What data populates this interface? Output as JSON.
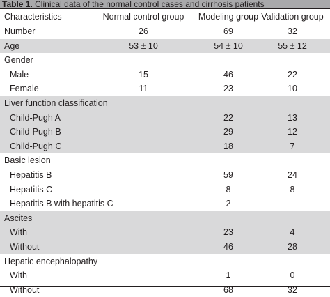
{
  "caption": {
    "label": "Table 1.",
    "text": "Clinical data of the normal control cases and cirrhosis patients"
  },
  "header": [
    "Characteristics",
    "Normal control group",
    "Modeling group",
    "Validation group"
  ],
  "rows": [
    {
      "label": "Number",
      "sub": false,
      "shade": false,
      "values": [
        "26",
        "69",
        "32"
      ]
    },
    {
      "label": "Age",
      "sub": false,
      "shade": true,
      "values": [
        "53 ± 10",
        "54 ± 10",
        "55 ± 12"
      ]
    },
    {
      "label": "Gender",
      "sub": false,
      "shade": false,
      "values": [
        "",
        "",
        ""
      ]
    },
    {
      "label": "Male",
      "sub": true,
      "shade": false,
      "values": [
        "15",
        "46",
        "22"
      ]
    },
    {
      "label": "Female",
      "sub": true,
      "shade": false,
      "values": [
        "11",
        "23",
        "10"
      ]
    },
    {
      "label": "Liver function classification",
      "sub": false,
      "shade": true,
      "values": [
        "",
        "",
        ""
      ]
    },
    {
      "label": "Child-Pugh A",
      "sub": true,
      "shade": true,
      "values": [
        "",
        "22",
        "13"
      ]
    },
    {
      "label": "Child-Pugh B",
      "sub": true,
      "shade": true,
      "values": [
        "",
        "29",
        "12"
      ]
    },
    {
      "label": "Child-Pugh C",
      "sub": true,
      "shade": true,
      "values": [
        "",
        "18",
        "7"
      ]
    },
    {
      "label": "Basic lesion",
      "sub": false,
      "shade": false,
      "values": [
        "",
        "",
        ""
      ]
    },
    {
      "label": "Hepatitis B",
      "sub": true,
      "shade": false,
      "values": [
        "",
        "59",
        "24"
      ]
    },
    {
      "label": "Hepatitis C",
      "sub": true,
      "shade": false,
      "values": [
        "",
        "8",
        "8"
      ]
    },
    {
      "label": "Hepatitis B with hepatitis C",
      "sub": true,
      "shade": false,
      "values": [
        "",
        "2",
        ""
      ]
    },
    {
      "label": "Ascites",
      "sub": false,
      "shade": true,
      "values": [
        "",
        "",
        ""
      ]
    },
    {
      "label": "With",
      "sub": true,
      "shade": true,
      "values": [
        "",
        "23",
        "4"
      ]
    },
    {
      "label": "Without",
      "sub": true,
      "shade": true,
      "values": [
        "",
        "46",
        "28"
      ]
    },
    {
      "label": "Hepatic encephalopathy",
      "sub": false,
      "shade": false,
      "values": [
        "",
        "",
        ""
      ]
    },
    {
      "label": "With",
      "sub": true,
      "shade": false,
      "values": [
        "",
        "1",
        "0"
      ]
    },
    {
      "label": "Without",
      "sub": true,
      "shade": false,
      "values": [
        "",
        "68",
        "32"
      ]
    }
  ]
}
